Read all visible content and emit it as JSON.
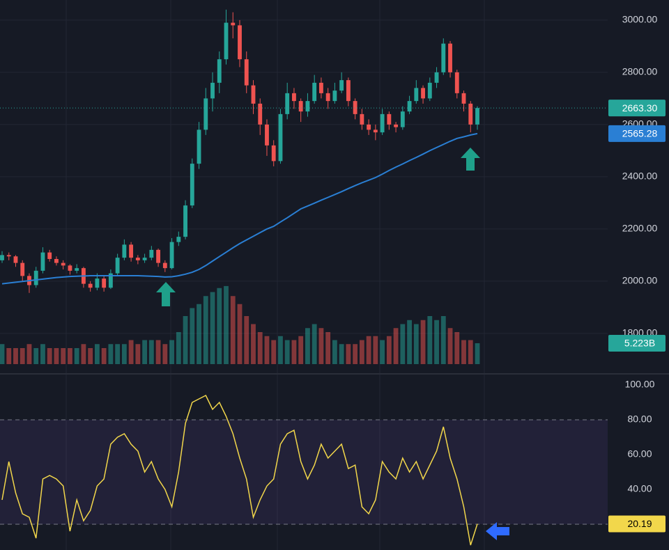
{
  "chart_data": [
    {
      "type": "candlestick",
      "ylim": [
        1677,
        3077
      ],
      "yticks": [
        {
          "value": 1800,
          "label": "1800.00"
        },
        {
          "value": 2000,
          "label": "2000.00"
        },
        {
          "value": 2200,
          "label": "2200.00"
        },
        {
          "value": 2400,
          "label": "2400.00"
        },
        {
          "value": 2600,
          "label": "2600.00"
        },
        {
          "value": 2800,
          "label": "2800.00"
        },
        {
          "value": 3000,
          "label": "3000.00"
        }
      ],
      "grid": true,
      "colors": {
        "up": "#26a69a",
        "down": "#ef5350"
      },
      "candles": [
        [
          2080,
          2115,
          2070,
          2100
        ],
        [
          2100,
          2110,
          2080,
          2095
        ],
        [
          2095,
          2100,
          2055,
          2070
        ],
        [
          2070,
          2080,
          2000,
          2020
        ],
        [
          2020,
          2030,
          1955,
          1985
        ],
        [
          1985,
          2055,
          1975,
          2040
        ],
        [
          2040,
          2130,
          2030,
          2110
        ],
        [
          2110,
          2120,
          2075,
          2085
        ],
        [
          2085,
          2095,
          2060,
          2070
        ],
        [
          2070,
          2080,
          2045,
          2060
        ],
        [
          2060,
          2065,
          2025,
          2040
        ],
        [
          2040,
          2065,
          2030,
          2050
        ],
        [
          2050,
          2055,
          1975,
          1990
        ],
        [
          1990,
          2000,
          1960,
          1975
        ],
        [
          1975,
          2030,
          1965,
          2010
        ],
        [
          2010,
          2020,
          1960,
          1975
        ],
        [
          1975,
          2045,
          1970,
          2030
        ],
        [
          2030,
          2105,
          2020,
          2090
        ],
        [
          2090,
          2160,
          2080,
          2140
        ],
        [
          2140,
          2150,
          2075,
          2090
        ],
        [
          2090,
          2100,
          2065,
          2080
        ],
        [
          2080,
          2105,
          2070,
          2090
        ],
        [
          2090,
          2135,
          2080,
          2120
        ],
        [
          2120,
          2125,
          2055,
          2070
        ],
        [
          2070,
          2080,
          2035,
          2050
        ],
        [
          2050,
          2165,
          2045,
          2150
        ],
        [
          2150,
          2190,
          2135,
          2170
        ],
        [
          2170,
          2310,
          2160,
          2290
        ],
        [
          2290,
          2470,
          2280,
          2450
        ],
        [
          2450,
          2610,
          2430,
          2580
        ],
        [
          2580,
          2740,
          2560,
          2700
        ],
        [
          2700,
          2800,
          2650,
          2760
        ],
        [
          2760,
          2880,
          2720,
          2850
        ],
        [
          2850,
          3040,
          2830,
          2990
        ],
        [
          2990,
          3030,
          2930,
          2980
        ],
        [
          2980,
          3000,
          2820,
          2850
        ],
        [
          2850,
          2880,
          2720,
          2750
        ],
        [
          2750,
          2770,
          2640,
          2680
        ],
        [
          2680,
          2700,
          2560,
          2600
        ],
        [
          2600,
          2620,
          2480,
          2520
        ],
        [
          2520,
          2540,
          2440,
          2460
        ],
        [
          2460,
          2660,
          2450,
          2640
        ],
        [
          2640,
          2760,
          2620,
          2720
        ],
        [
          2720,
          2740,
          2660,
          2690
        ],
        [
          2690,
          2700,
          2610,
          2650
        ],
        [
          2650,
          2720,
          2630,
          2690
        ],
        [
          2690,
          2790,
          2680,
          2760
        ],
        [
          2760,
          2780,
          2700,
          2720
        ],
        [
          2720,
          2740,
          2660,
          2690
        ],
        [
          2690,
          2760,
          2680,
          2730
        ],
        [
          2730,
          2800,
          2720,
          2770
        ],
        [
          2770,
          2780,
          2670,
          2690
        ],
        [
          2690,
          2700,
          2620,
          2640
        ],
        [
          2640,
          2660,
          2580,
          2600
        ],
        [
          2600,
          2620,
          2560,
          2580
        ],
        [
          2580,
          2600,
          2540,
          2570
        ],
        [
          2570,
          2660,
          2560,
          2640
        ],
        [
          2640,
          2650,
          2580,
          2600
        ],
        [
          2600,
          2610,
          2570,
          2590
        ],
        [
          2590,
          2670,
          2580,
          2650
        ],
        [
          2650,
          2710,
          2640,
          2690
        ],
        [
          2690,
          2770,
          2680,
          2740
        ],
        [
          2740,
          2750,
          2680,
          2700
        ],
        [
          2700,
          2780,
          2690,
          2760
        ],
        [
          2760,
          2820,
          2740,
          2800
        ],
        [
          2800,
          2930,
          2790,
          2910
        ],
        [
          2910,
          2920,
          2780,
          2800
        ],
        [
          2800,
          2810,
          2700,
          2720
        ],
        [
          2720,
          2730,
          2650,
          2680
        ],
        [
          2680,
          2690,
          2570,
          2600
        ],
        [
          2600,
          2670,
          2580,
          2663.3
        ]
      ],
      "ma": {
        "color": "#2a7fd4",
        "values": [
          1990,
          1993,
          1996,
          1999,
          2002,
          2005,
          2008,
          2011,
          2014,
          2016,
          2018,
          2019,
          2020,
          2021,
          2021,
          2021,
          2021,
          2021,
          2021,
          2021,
          2021,
          2020,
          2019,
          2018,
          2016,
          2017,
          2021,
          2027,
          2034,
          2045,
          2060,
          2077,
          2094,
          2111,
          2128,
          2144,
          2158,
          2172,
          2186,
          2200,
          2210,
          2227,
          2243,
          2260,
          2277,
          2288,
          2299,
          2310,
          2321,
          2332,
          2343,
          2355,
          2366,
          2377,
          2387,
          2397,
          2410,
          2424,
          2437,
          2449,
          2462,
          2474,
          2487,
          2500,
          2512,
          2524,
          2536,
          2547,
          2553,
          2560,
          2565.28
        ]
      },
      "volume": {
        "vlim": [
          0,
          20
        ],
        "values": [
          5,
          4,
          4,
          4,
          5,
          4,
          5,
          4,
          4,
          4,
          4,
          4,
          5,
          4,
          5,
          4,
          5,
          5,
          5,
          6,
          5,
          6,
          6,
          6,
          5,
          6,
          8,
          12,
          14,
          15,
          17,
          18,
          19,
          19.5,
          17,
          15,
          12,
          10,
          8,
          7,
          6,
          7,
          6,
          6,
          7,
          9,
          10,
          9,
          8,
          6,
          5,
          5,
          5,
          6,
          7,
          7,
          6,
          7,
          9,
          10,
          11,
          10,
          11,
          12,
          11,
          12,
          9,
          8,
          6,
          6,
          5.223
        ]
      },
      "last_price": {
        "value": 2663.3,
        "label": "2663.30"
      },
      "ma_label": {
        "value": 2565.28,
        "label": "2565.28"
      },
      "volume_label": {
        "value": 5.223,
        "label": "5.223B"
      }
    },
    {
      "type": "line",
      "ylim": [
        5.2,
        106
      ],
      "yticks": [
        {
          "value": 40,
          "label": "40.00"
        },
        {
          "value": 60,
          "label": "60.00"
        },
        {
          "value": 80,
          "label": "80.00"
        },
        {
          "value": 100,
          "label": "100.00"
        }
      ],
      "band": [
        20,
        80
      ],
      "color": "#f2d74b",
      "values": [
        34,
        56,
        38,
        26,
        24,
        12,
        46,
        48,
        46,
        42,
        16,
        34,
        22,
        28,
        42,
        46,
        66,
        70,
        72,
        66,
        62,
        50,
        56,
        46,
        40,
        30,
        50,
        78,
        90,
        92,
        94,
        86,
        90,
        82,
        72,
        58,
        46,
        24,
        34,
        42,
        46,
        66,
        72,
        74,
        56,
        46,
        54,
        66,
        58,
        62,
        66,
        52,
        54,
        30,
        26,
        34,
        56,
        50,
        46,
        58,
        50,
        56,
        46,
        54,
        62,
        76,
        58,
        46,
        30,
        8,
        20.19
      ],
      "last_label": {
        "value": 20.19,
        "label": "20.19"
      }
    }
  ]
}
